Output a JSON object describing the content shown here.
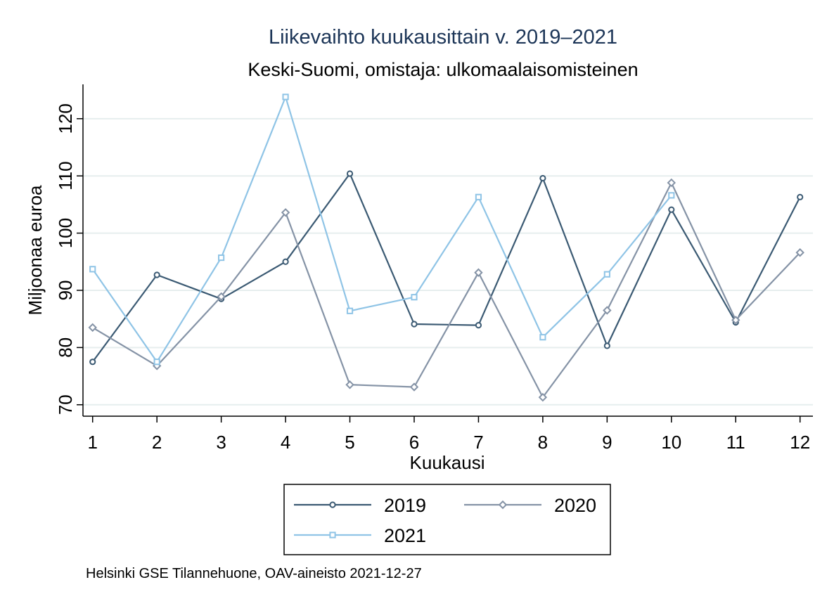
{
  "chart_data": {
    "type": "line",
    "title": "Liikevaihto kuukausittain v. 2019–2021",
    "subtitle": "Keski-Suomi, omistaja: ulkomaalaisomisteinen",
    "xlabel": "Kuukausi",
    "ylabel": "Miljoonaa euroa",
    "x": [
      1,
      2,
      3,
      4,
      5,
      6,
      7,
      8,
      9,
      10,
      11,
      12
    ],
    "x_ticks": [
      "1",
      "2",
      "3",
      "4",
      "5",
      "6",
      "7",
      "8",
      "9",
      "10",
      "11",
      "12"
    ],
    "y_ticks": [
      "70",
      "80",
      "90",
      "100",
      "110",
      "120"
    ],
    "xlim": [
      0.85,
      12.2
    ],
    "ylim": [
      68,
      126
    ],
    "grid": true,
    "legend_position": "bottom",
    "series": [
      {
        "name": "2019",
        "color": "#3b5a73",
        "marker": "circle",
        "values": [
          77.5,
          92.7,
          88.5,
          95.0,
          110.4,
          84.1,
          83.9,
          109.6,
          80.3,
          104.1,
          84.4,
          106.3
        ]
      },
      {
        "name": "2020",
        "color": "#8593a6",
        "marker": "diamond",
        "values": [
          83.5,
          76.8,
          88.9,
          103.6,
          73.5,
          73.1,
          93.1,
          71.3,
          86.5,
          108.8,
          84.8,
          96.6
        ]
      },
      {
        "name": "2021",
        "color": "#8fc4e6",
        "marker": "square",
        "values": [
          93.7,
          77.5,
          95.7,
          123.8,
          86.4,
          88.8,
          106.3,
          81.8,
          92.8,
          106.6,
          null,
          null
        ]
      }
    ]
  },
  "source_note": "Helsinki GSE Tilannehuone, OAV-aineisto 2021-12-27"
}
